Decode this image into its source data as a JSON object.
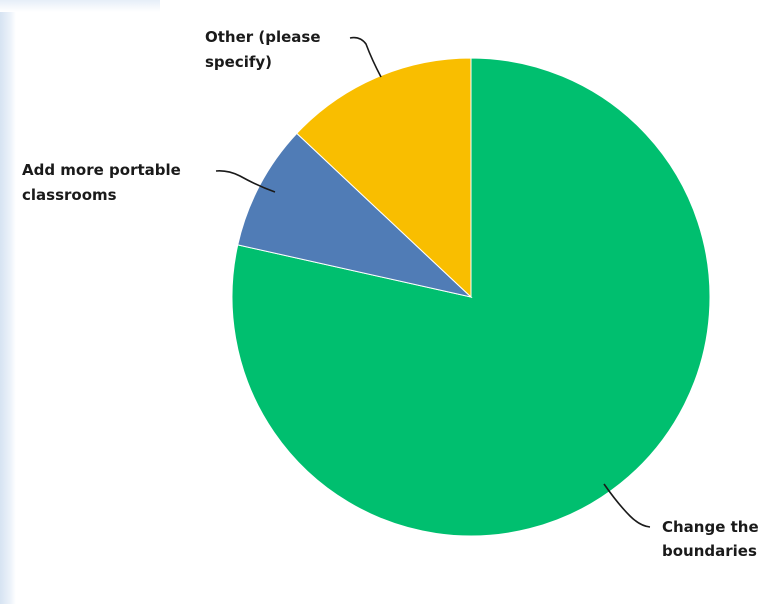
{
  "chart_data": {
    "type": "pie",
    "start_angle_deg": 0,
    "direction": "clockwise",
    "slices": [
      {
        "label_lines": [
          "Change the",
          "boundaries"
        ],
        "value": 78.5,
        "color": "#00bf6f"
      },
      {
        "label_lines": [
          "Add more portable",
          "classrooms"
        ],
        "value": 8.5,
        "color": "#507cb6"
      },
      {
        "label_lines": [
          "Other (please",
          "specify)"
        ],
        "value": 13.0,
        "color": "#f9be00"
      }
    ],
    "title": "",
    "legend": "none"
  }
}
